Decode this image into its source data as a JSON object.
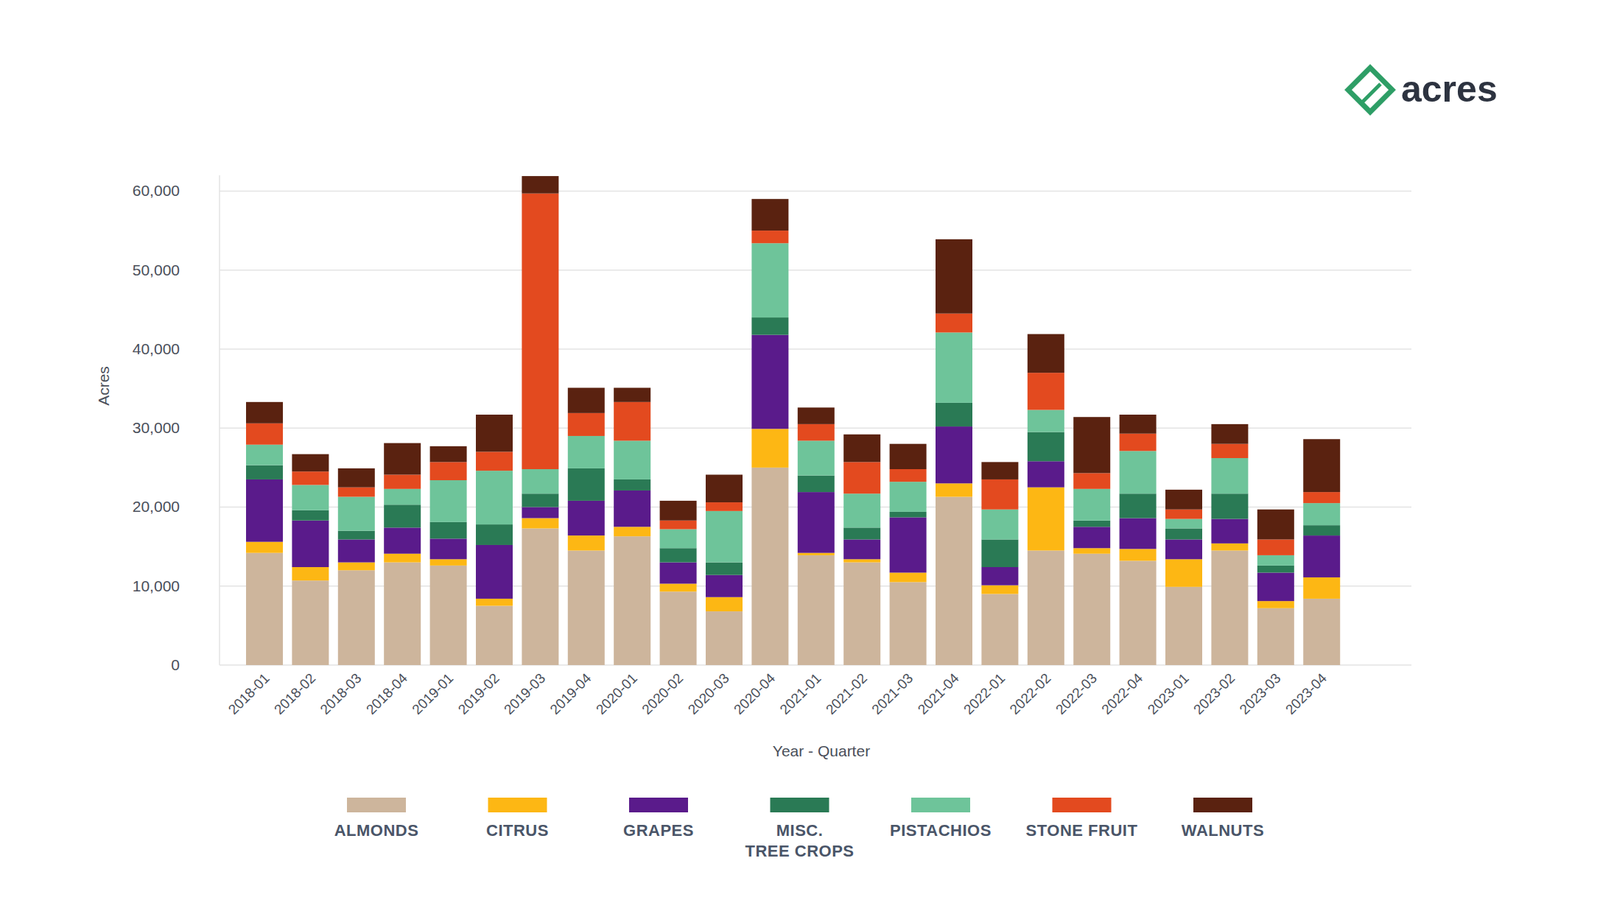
{
  "logo": {
    "text": "acres"
  },
  "chart_data": {
    "type": "bar",
    "stacked": true,
    "grid": true,
    "legend": "bottom",
    "x_label": "Year - Quarter",
    "y_label": "Acres",
    "categories": [
      "2018-01",
      "2018-02",
      "2018-03",
      "2018-04",
      "2019-01",
      "2019-02",
      "2019-03",
      "2019-04",
      "2020-01",
      "2020-02",
      "2020-03",
      "2020-04",
      "2021-01",
      "2021-02",
      "2021-03",
      "2021-04",
      "2022-01",
      "2022-02",
      "2022-03",
      "2022-04",
      "2023-01",
      "2023-02",
      "2023-03",
      "2023-04"
    ],
    "ylim": [
      0,
      62000
    ],
    "yticks": [
      0,
      {
        "value": 10000,
        "label": "10,000"
      },
      {
        "value": 20000,
        "label": "20,000"
      },
      {
        "value": 30000,
        "label": "30,000"
      },
      {
        "value": 40000,
        "label": "40,000"
      },
      {
        "value": 50000,
        "label": "50,000"
      },
      {
        "value": 60000,
        "label": "60,000"
      }
    ],
    "series": [
      {
        "name": "ALMONDS",
        "color": "#cdb59c",
        "values": [
          14200,
          10700,
          12000,
          13000,
          12600,
          7500,
          17300,
          14500,
          16300,
          9300,
          6800,
          25000,
          13900,
          13000,
          10500,
          21300,
          9000,
          14500,
          14100,
          13200,
          9900,
          14500,
          7200,
          8400
        ]
      },
      {
        "name": "CITRUS",
        "color": "#fdb714",
        "values": [
          1400,
          1700,
          1000,
          1100,
          800,
          900,
          1300,
          1900,
          1200,
          1000,
          1800,
          4900,
          300,
          400,
          1200,
          1700,
          1100,
          8000,
          700,
          1500,
          3500,
          900,
          900,
          2700
        ]
      },
      {
        "name": "GRAPES",
        "color": "#5a1b8b",
        "values": [
          7900,
          5900,
          2900,
          3300,
          2600,
          6800,
          1400,
          4400,
          4600,
          2700,
          2800,
          11900,
          7700,
          2500,
          7000,
          7200,
          2300,
          3300,
          2700,
          3900,
          2500,
          3100,
          3600,
          5300
        ]
      },
      {
        "name": "MISC. TREE CROPS",
        "color": "#2a7a55",
        "values": [
          1800,
          1300,
          1100,
          2900,
          2100,
          2600,
          1700,
          4100,
          1400,
          1800,
          1600,
          2200,
          2100,
          1500,
          700,
          3000,
          3500,
          3700,
          800,
          3100,
          1400,
          3200,
          900,
          1300
        ]
      },
      {
        "name": "PISTACHIOS",
        "color": "#6ec49a",
        "values": [
          2600,
          3200,
          4300,
          2000,
          5300,
          6800,
          3100,
          4100,
          4900,
          2400,
          6500,
          9400,
          4400,
          4300,
          3800,
          8900,
          3800,
          2800,
          4000,
          5400,
          1200,
          4500,
          1300,
          2800
        ]
      },
      {
        "name": "STONE FRUIT",
        "color": "#e34a1f",
        "values": [
          2700,
          1700,
          1200,
          1800,
          2300,
          2400,
          34900,
          2900,
          4900,
          1100,
          1100,
          1600,
          2100,
          4000,
          1600,
          2400,
          3800,
          4700,
          2000,
          2200,
          1200,
          1800,
          2000,
          1400
        ]
      },
      {
        "name": "WALNUTS",
        "color": "#5a2210",
        "values": [
          2700,
          2200,
          2400,
          4000,
          2000,
          4700,
          2200,
          3200,
          1800,
          2500,
          3500,
          4000,
          2100,
          3500,
          3200,
          9400,
          2200,
          4900,
          7100,
          2400,
          2500,
          2500,
          3800,
          6700
        ]
      }
    ]
  }
}
